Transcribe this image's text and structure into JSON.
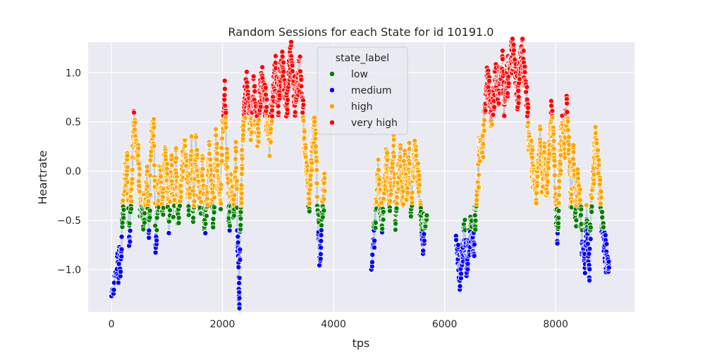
{
  "chart_data": {
    "type": "scatter",
    "title": "Random Sessions for each State for id 10191.0",
    "xlabel": "tps",
    "ylabel": "Heartrate",
    "xlim": [
      -420,
      9420
    ],
    "ylim": [
      -1.43,
      1.31
    ],
    "x_ticks": [
      0,
      2000,
      4000,
      6000,
      8000
    ],
    "x_tick_labels": [
      "0",
      "2000",
      "4000",
      "6000",
      "8000"
    ],
    "y_ticks": [
      -1.0,
      -0.5,
      0.0,
      0.5,
      1.0
    ],
    "y_tick_labels": [
      "−1.0",
      "−0.5",
      "0.0",
      "0.5",
      "1.0"
    ],
    "grid": true,
    "legend": {
      "title": "state_label",
      "placement": "top-center",
      "entries": [
        {
          "name": "low",
          "color": "#008000"
        },
        {
          "name": "medium",
          "color": "#0000ff"
        },
        {
          "name": "high",
          "color": "#ffa500"
        },
        {
          "name": "very high",
          "color": "#ff0000"
        }
      ]
    },
    "line_color": "#b0c4de",
    "sessions": [
      {
        "x": [
          0,
          100,
          170,
          200,
          250,
          280,
          320,
          360,
          400,
          440,
          480,
          520,
          560,
          600,
          640,
          680,
          720,
          760,
          800,
          840,
          880,
          920,
          960,
          1000,
          1040,
          1080,
          1120,
          1160,
          1200,
          1240,
          1280,
          1320,
          1360,
          1400,
          1440,
          1480,
          1520,
          1560,
          1600,
          1640,
          1680,
          1720,
          1760,
          1800,
          1840,
          1880,
          1920,
          1960,
          2000,
          2040,
          2080,
          2120,
          2160,
          2200,
          2240,
          2280,
          2300,
          2320,
          2340,
          2360,
          2400,
          2440,
          2480,
          2520,
          2560,
          2600,
          2640,
          2680,
          2720,
          2760,
          2800,
          2840,
          2880,
          2920,
          2960,
          3000,
          3040,
          3080,
          3120,
          3160,
          3200,
          3240,
          3280,
          3320,
          3360,
          3400,
          3440,
          3480,
          3520,
          3560,
          3600,
          3640,
          3680,
          3720,
          3760,
          3800,
          3840
        ],
        "y": [
          -1.27,
          -1.0,
          -0.9,
          -0.45,
          -0.05,
          0.1,
          -0.7,
          -0.2,
          0.45,
          0.3,
          0.1,
          -0.3,
          -0.45,
          -0.35,
          -0.1,
          -0.55,
          0.35,
          0.4,
          -0.75,
          -0.3,
          0.0,
          -0.4,
          0.25,
          -0.1,
          -0.5,
          0.0,
          -0.35,
          0.1,
          -0.45,
          -0.2,
          0.05,
          0.25,
          -0.05,
          -0.3,
          0.2,
          -0.4,
          0.2,
          -0.1,
          -0.35,
          0.05,
          -0.55,
          -0.3,
          0.2,
          -0.15,
          -0.45,
          0.25,
          -0.05,
          -0.3,
          0.4,
          0.75,
          0.1,
          -0.5,
          -0.15,
          -0.4,
          0.15,
          -0.8,
          -1.3,
          -0.6,
          -0.2,
          0.3,
          0.7,
          0.85,
          0.6,
          0.45,
          0.85,
          0.55,
          0.35,
          0.8,
          0.9,
          0.75,
          0.55,
          0.3,
          0.5,
          0.85,
          1.0,
          0.7,
          0.95,
          1.1,
          0.8,
          0.65,
          1.05,
          1.15,
          0.85,
          0.7,
          0.95,
          1.0,
          0.7,
          0.25,
          0.0,
          -0.3,
          0.1,
          0.45,
          0.25,
          -0.5,
          -0.9,
          -0.3,
          -0.2
        ]
      },
      {
        "x": [
          4680,
          4720,
          4760,
          4800,
          4840,
          4880,
          4920,
          4960,
          5000,
          5040,
          5080,
          5120,
          5160,
          5200,
          5240,
          5280,
          5320,
          5360,
          5400,
          5440,
          5480,
          5520,
          5560,
          5600,
          5640,
          5680
        ],
        "y": [
          -1.0,
          -0.7,
          -0.4,
          0.0,
          -0.3,
          -0.5,
          -0.1,
          0.15,
          -0.3,
          -0.05,
          0.2,
          -0.45,
          -0.1,
          0.2,
          -0.3,
          0.1,
          -0.2,
          0.15,
          -0.35,
          0.05,
          0.2,
          -0.1,
          -0.3,
          -0.7,
          -0.55,
          -0.45
        ]
      },
      {
        "x": [
          6200,
          6240,
          6280,
          6320,
          6360,
          6400,
          6440,
          6480,
          6520,
          6560,
          6600,
          6640,
          6680,
          6720,
          6760,
          6800,
          6840,
          6880,
          6920,
          6960,
          7000,
          7040,
          7080,
          7120,
          7160,
          7200,
          7240,
          7280,
          7320,
          7360,
          7400,
          7440,
          7480,
          7520,
          7560,
          7600,
          7640,
          7680,
          7720,
          7760,
          7800,
          7840,
          7880,
          7920,
          7960,
          8000,
          8040,
          8080,
          8120,
          8160,
          8200,
          8240,
          8280,
          8320,
          8360,
          8400,
          8440,
          8480,
          8520,
          8560,
          8600,
          8640,
          8680,
          8720,
          8760,
          8800,
          8840,
          8880,
          8920,
          8960
        ],
        "y": [
          -0.7,
          -0.9,
          -1.05,
          -0.85,
          -0.6,
          -0.95,
          -0.75,
          -0.55,
          -0.8,
          -0.4,
          -0.1,
          0.3,
          0.2,
          0.6,
          0.9,
          0.85,
          0.55,
          0.7,
          1.0,
          0.8,
          0.95,
          1.05,
          0.7,
          0.9,
          1.05,
          1.15,
          1.2,
          0.95,
          0.75,
          1.1,
          1.2,
          1.0,
          0.7,
          0.35,
          0.15,
          0.0,
          -0.2,
          0.05,
          0.3,
          -0.1,
          0.15,
          -0.15,
          0.2,
          0.55,
          0.35,
          -0.35,
          -0.6,
          0.1,
          0.45,
          0.25,
          0.65,
          0.2,
          -0.3,
          0.15,
          -0.45,
          -0.1,
          -0.35,
          -0.75,
          -0.9,
          -0.5,
          -1.0,
          -0.4,
          0.0,
          0.3,
          0.1,
          -0.2,
          -0.55,
          -0.75,
          -0.9,
          -0.98
        ]
      }
    ]
  }
}
